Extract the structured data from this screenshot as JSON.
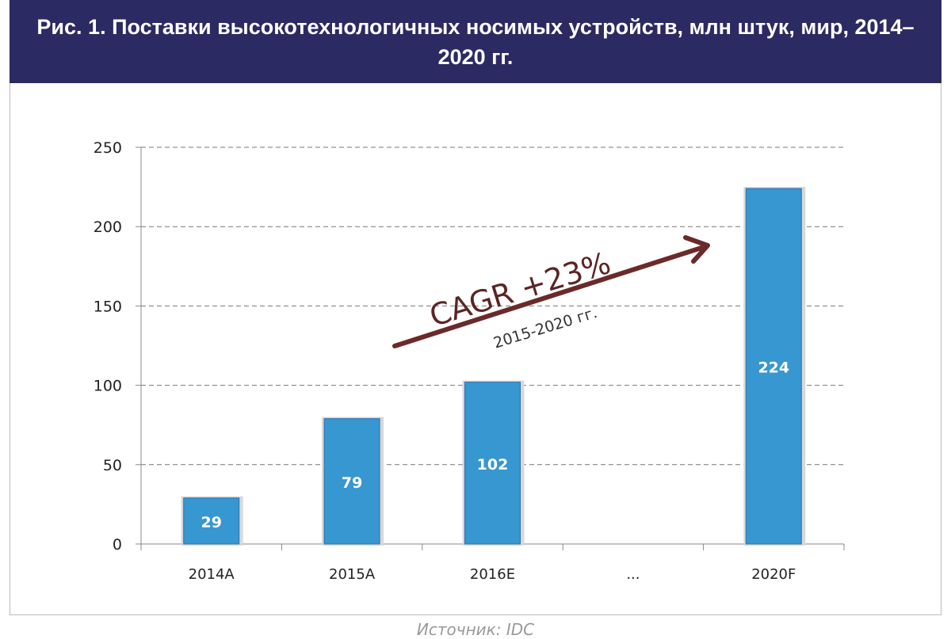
{
  "chart_data": {
    "type": "bar",
    "title": "Рис. 1. Поставки высокотехнологичных носимых устройств, млн штук, мир, 2014–2020 гг.",
    "categories": [
      "2014A",
      "2015A",
      "2016E",
      "...",
      "2020F"
    ],
    "values": [
      29,
      79,
      102,
      null,
      224
    ],
    "data_labels": [
      "29",
      "79",
      "102",
      "",
      "224"
    ],
    "xlabel": "",
    "ylabel": "",
    "ylim": [
      0,
      250
    ],
    "yticks": [
      "0",
      "50",
      "100",
      "150",
      "200",
      "250"
    ],
    "grid": true,
    "bar_color": "#3797d0",
    "annotation": {
      "main": "CAGR +23%",
      "sub": "2015-2020 гг.",
      "color": "#6b2a2a"
    },
    "source": "Источник: IDC"
  }
}
